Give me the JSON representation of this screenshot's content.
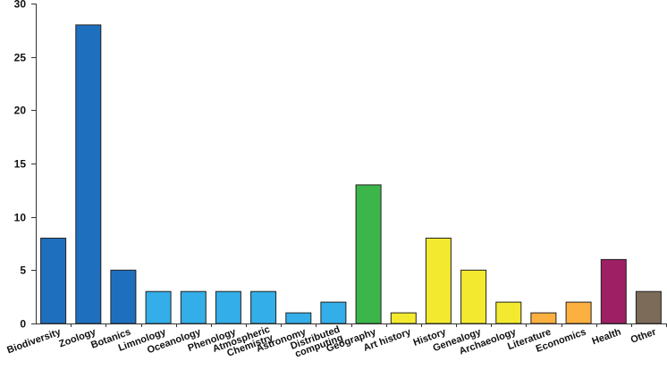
{
  "chart_data": {
    "type": "bar",
    "title": "",
    "xlabel": "",
    "ylabel": "",
    "ylim": [
      0,
      30
    ],
    "y_ticks": [
      0,
      5,
      10,
      15,
      20,
      25,
      30
    ],
    "grid": false,
    "legend": "none",
    "categories": [
      "Biodiversity",
      "Zoology",
      "Botanics",
      "Limnology",
      "Oceanology",
      "Phenology",
      "Atmospheric Chemistry",
      "Astronomy",
      "Distributed computing",
      "Geography",
      "Art history",
      "History",
      "Genealogy",
      "Archaeology",
      "Literature",
      "Economics",
      "Health",
      "Other"
    ],
    "values": [
      8,
      28,
      5,
      3,
      3,
      3,
      3,
      1,
      2,
      13,
      1,
      8,
      5,
      2,
      1,
      2,
      6,
      3
    ],
    "bar_colors": [
      "#1f6fbf",
      "#1f6fbf",
      "#1f6fbf",
      "#33aee8",
      "#33aee8",
      "#33aee8",
      "#33aee8",
      "#33aee8",
      "#33aee8",
      "#3cb54a",
      "#f3ea2f",
      "#f3ea2f",
      "#f3ea2f",
      "#f3ea2f",
      "#fbb040",
      "#fbb040",
      "#9e1f63",
      "#7b6b58"
    ]
  }
}
